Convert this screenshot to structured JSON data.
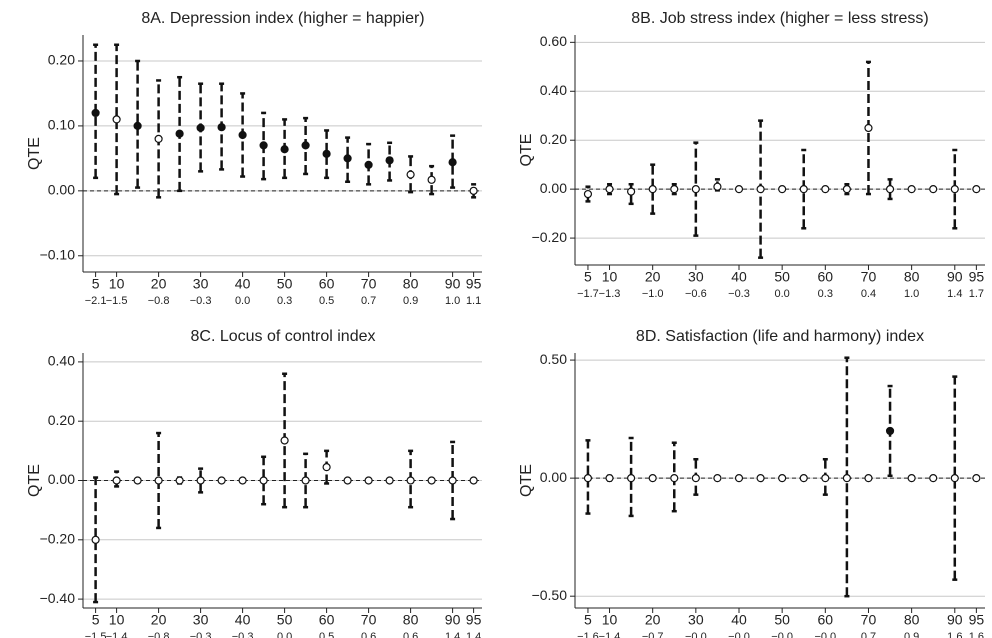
{
  "chart_data": [
    {
      "type": "errorbar",
      "title": "8A. Depression index (higher = happier)",
      "y_label": "QTE",
      "x": [
        5,
        10,
        15,
        20,
        25,
        30,
        35,
        40,
        45,
        50,
        55,
        60,
        65,
        70,
        75,
        80,
        85,
        90,
        95
      ],
      "values": [
        0.12,
        0.11,
        0.1,
        0.08,
        0.088,
        0.097,
        0.098,
        0.086,
        0.07,
        0.064,
        0.07,
        0.057,
        0.05,
        0.04,
        0.047,
        0.025,
        0.017,
        0.044,
        0.0
      ],
      "ci_low": [
        0.02,
        -0.005,
        0.005,
        -0.01,
        0.0,
        0.03,
        0.033,
        0.022,
        0.018,
        0.02,
        0.026,
        0.02,
        0.014,
        0.01,
        0.016,
        -0.002,
        -0.005,
        0.005,
        -0.01
      ],
      "ci_high": [
        0.225,
        0.225,
        0.2,
        0.17,
        0.175,
        0.165,
        0.165,
        0.15,
        0.12,
        0.11,
        0.112,
        0.093,
        0.082,
        0.072,
        0.074,
        0.053,
        0.038,
        0.085,
        0.01
      ],
      "filled": [
        true,
        false,
        true,
        false,
        true,
        true,
        true,
        true,
        true,
        true,
        true,
        true,
        true,
        true,
        true,
        false,
        false,
        true,
        false
      ],
      "xlim": [
        2,
        97
      ],
      "ylim": [
        -0.125,
        0.24
      ],
      "xticks": [
        5,
        10,
        20,
        30,
        40,
        50,
        60,
        70,
        80,
        90,
        95
      ],
      "x2ticks": [
        {
          "value": 5,
          "label": "−2.1"
        },
        {
          "value": 10,
          "label": "−1.5"
        },
        {
          "value": 20,
          "label": "−0.8"
        },
        {
          "value": 30,
          "label": "−0.3"
        },
        {
          "value": 40,
          "label": "0.0"
        },
        {
          "value": 50,
          "label": "0.3"
        },
        {
          "value": 60,
          "label": "0.5"
        },
        {
          "value": 70,
          "label": "0.7"
        },
        {
          "value": 80,
          "label": "0.9"
        },
        {
          "value": 90,
          "label": "1.0"
        },
        {
          "value": 95,
          "label": "1.1"
        }
      ],
      "yticks": [
        {
          "value": 0.2,
          "label": "0.20"
        },
        {
          "value": 0.1,
          "label": "0.10"
        },
        {
          "value": 0,
          "label": "0.00"
        },
        {
          "value": -0.1,
          "label": "−0.10"
        }
      ],
      "grid": true
    },
    {
      "type": "errorbar",
      "title": "8B. Job stress index (higher = less stress)",
      "y_label": "QTE",
      "x": [
        5,
        10,
        15,
        20,
        25,
        30,
        35,
        40,
        45,
        50,
        55,
        60,
        65,
        70,
        75,
        80,
        85,
        90,
        95
      ],
      "values": [
        -0.02,
        0,
        -0.01,
        0,
        0,
        0,
        0.01,
        0,
        0,
        0,
        0,
        0,
        0,
        0.25,
        0,
        0,
        0,
        0,
        0
      ],
      "ci_low": [
        -0.05,
        -0.02,
        -0.06,
        -0.1,
        -0.02,
        -0.19,
        -0.005,
        null,
        -0.28,
        null,
        -0.16,
        null,
        -0.02,
        -0.02,
        -0.04,
        null,
        null,
        -0.16,
        null
      ],
      "ci_high": [
        0.01,
        0.02,
        0.02,
        0.1,
        0.02,
        0.19,
        0.04,
        null,
        0.28,
        null,
        0.16,
        null,
        0.02,
        0.52,
        0.04,
        null,
        null,
        0.16,
        null
      ],
      "filled": [
        false,
        false,
        false,
        false,
        false,
        false,
        false,
        false,
        false,
        false,
        false,
        false,
        false,
        false,
        false,
        false,
        false,
        false,
        false
      ],
      "xlim": [
        2,
        97
      ],
      "ylim": [
        -0.31,
        0.63
      ],
      "xticks": [
        5,
        10,
        20,
        30,
        40,
        50,
        60,
        70,
        80,
        90,
        95
      ],
      "x2ticks": [
        {
          "value": 5,
          "label": "−1.7"
        },
        {
          "value": 10,
          "label": "−1.3"
        },
        {
          "value": 20,
          "label": "−1.0"
        },
        {
          "value": 30,
          "label": "−0.6"
        },
        {
          "value": 40,
          "label": "−0.3"
        },
        {
          "value": 50,
          "label": "0.0"
        },
        {
          "value": 60,
          "label": "0.3"
        },
        {
          "value": 70,
          "label": "0.4"
        },
        {
          "value": 80,
          "label": "1.0"
        },
        {
          "value": 90,
          "label": "1.4"
        },
        {
          "value": 95,
          "label": "1.7"
        }
      ],
      "yticks": [
        {
          "value": 0.6,
          "label": "0.60"
        },
        {
          "value": 0.4,
          "label": "0.40"
        },
        {
          "value": 0.2,
          "label": "0.20"
        },
        {
          "value": 0,
          "label": "0.00"
        },
        {
          "value": -0.2,
          "label": "−0.20"
        }
      ],
      "grid": true
    },
    {
      "type": "errorbar",
      "title": "8C. Locus of control index",
      "y_label": "QTE",
      "x": [
        5,
        10,
        15,
        20,
        25,
        30,
        35,
        40,
        45,
        50,
        55,
        60,
        65,
        70,
        75,
        80,
        85,
        90,
        95
      ],
      "values": [
        -0.2,
        0,
        0,
        0,
        0,
        0,
        0,
        0,
        0,
        0.135,
        0,
        0.045,
        0,
        0,
        0,
        0,
        0,
        0,
        0
      ],
      "ci_low": [
        -0.41,
        -0.02,
        null,
        -0.16,
        -0.01,
        -0.04,
        null,
        -0.005,
        -0.08,
        -0.09,
        -0.09,
        -0.01,
        null,
        null,
        null,
        -0.09,
        null,
        -0.13,
        null
      ],
      "ci_high": [
        0.01,
        0.03,
        null,
        0.16,
        0.01,
        0.04,
        null,
        0.005,
        0.08,
        0.36,
        0.09,
        0.1,
        null,
        null,
        null,
        0.1,
        null,
        0.13,
        null
      ],
      "filled": [
        false,
        false,
        false,
        false,
        false,
        false,
        false,
        false,
        false,
        false,
        false,
        false,
        false,
        false,
        false,
        false,
        false,
        false,
        false
      ],
      "xlim": [
        2,
        97
      ],
      "ylim": [
        -0.43,
        0.43
      ],
      "xticks": [
        5,
        10,
        20,
        30,
        40,
        50,
        60,
        70,
        80,
        90,
        95
      ],
      "x2ticks": [
        {
          "value": 5,
          "label": "−1.5"
        },
        {
          "value": 10,
          "label": "−1.4"
        },
        {
          "value": 20,
          "label": "−0.8"
        },
        {
          "value": 30,
          "label": "−0.3"
        },
        {
          "value": 40,
          "label": "−0.3"
        },
        {
          "value": 50,
          "label": "0.0"
        },
        {
          "value": 60,
          "label": "0.5"
        },
        {
          "value": 70,
          "label": "0.6"
        },
        {
          "value": 80,
          "label": "0.6"
        },
        {
          "value": 90,
          "label": "1.4"
        },
        {
          "value": 95,
          "label": "1.4"
        }
      ],
      "yticks": [
        {
          "value": 0.4,
          "label": "0.40"
        },
        {
          "value": 0.2,
          "label": "0.20"
        },
        {
          "value": 0,
          "label": "0.00"
        },
        {
          "value": -0.2,
          "label": "−0.20"
        },
        {
          "value": -0.4,
          "label": "−0.40"
        }
      ],
      "grid": true
    },
    {
      "type": "errorbar",
      "title": "8D. Satisfaction (life and harmony) index",
      "y_label": "QTE",
      "x": [
        5,
        10,
        15,
        20,
        25,
        30,
        35,
        40,
        45,
        50,
        55,
        60,
        65,
        70,
        75,
        80,
        85,
        90,
        95
      ],
      "values": [
        0,
        0,
        0,
        0,
        0,
        0,
        0,
        0,
        0,
        0,
        0,
        0,
        0,
        0,
        0.2,
        0,
        0,
        0,
        0
      ],
      "ci_low": [
        -0.15,
        -0.01,
        -0.16,
        null,
        -0.14,
        -0.07,
        null,
        null,
        null,
        null,
        null,
        -0.07,
        -0.5,
        null,
        0.01,
        null,
        null,
        -0.43,
        null
      ],
      "ci_high": [
        0.16,
        0.01,
        0.17,
        null,
        0.15,
        0.08,
        null,
        null,
        null,
        null,
        null,
        0.08,
        0.51,
        null,
        0.39,
        null,
        null,
        0.43,
        null
      ],
      "filled": [
        false,
        false,
        false,
        false,
        false,
        false,
        false,
        false,
        false,
        false,
        false,
        false,
        false,
        false,
        true,
        false,
        false,
        false,
        false
      ],
      "xlim": [
        2,
        97
      ],
      "ylim": [
        -0.55,
        0.53
      ],
      "xticks": [
        5,
        10,
        20,
        30,
        40,
        50,
        60,
        70,
        80,
        90,
        95
      ],
      "x2ticks": [
        {
          "value": 5,
          "label": "−1.6"
        },
        {
          "value": 10,
          "label": "−1.4"
        },
        {
          "value": 20,
          "label": "−0.7"
        },
        {
          "value": 30,
          "label": "−0.0"
        },
        {
          "value": 40,
          "label": "−0.0"
        },
        {
          "value": 50,
          "label": "−0.0"
        },
        {
          "value": 60,
          "label": "−0.0"
        },
        {
          "value": 70,
          "label": "0.7"
        },
        {
          "value": 80,
          "label": "0.9"
        },
        {
          "value": 90,
          "label": "1.6"
        },
        {
          "value": 95,
          "label": "1.6"
        }
      ],
      "yticks": [
        {
          "value": 0.5,
          "label": "0.50"
        },
        {
          "value": 0,
          "label": "0.00"
        },
        {
          "value": -0.5,
          "label": "−0.50"
        }
      ],
      "grid": true
    }
  ]
}
